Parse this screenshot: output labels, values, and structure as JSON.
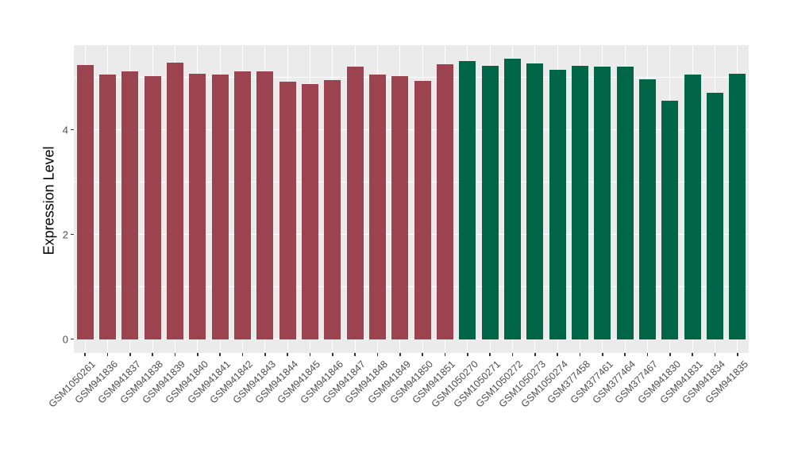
{
  "chart_data": {
    "type": "bar",
    "title": "",
    "xlabel": "",
    "ylabel": "Expression Level",
    "ylim": [
      0,
      5.61
    ],
    "yticks": [
      0,
      2,
      4
    ],
    "yticks_minor": [
      1,
      3,
      5
    ],
    "grid": true,
    "legend_position": "none",
    "categories": [
      "GSM1050261",
      "GSM941836",
      "GSM941837",
      "GSM941838",
      "GSM941839",
      "GSM941840",
      "GSM941841",
      "GSM941842",
      "GSM941843",
      "GSM941844",
      "GSM941845",
      "GSM941846",
      "GSM941847",
      "GSM941848",
      "GSM941849",
      "GSM941850",
      "GSM941851",
      "GSM1050270",
      "GSM1050271",
      "GSM1050272",
      "GSM1050273",
      "GSM1050274",
      "GSM377458",
      "GSM377461",
      "GSM377464",
      "GSM377467",
      "GSM941830",
      "GSM941831",
      "GSM941834",
      "GSM941835"
    ],
    "values": [
      5.23,
      5.06,
      5.12,
      5.02,
      5.28,
      5.07,
      5.06,
      5.12,
      5.11,
      4.92,
      4.87,
      4.94,
      5.21,
      5.06,
      5.02,
      4.93,
      5.25,
      5.31,
      5.22,
      5.36,
      5.27,
      5.14,
      5.22,
      5.2,
      5.2,
      4.96,
      4.56,
      5.06,
      4.71,
      5.07
    ],
    "groups": [
      {
        "name": "group-1",
        "color": "#9B4450",
        "count": 17
      },
      {
        "name": "group-2",
        "color": "#016647",
        "count": 13
      }
    ],
    "colors": {
      "panel_background": "#EBEBEB",
      "gridline": "#FFFFFF",
      "axis_text": "#4D4D4D",
      "axis_title": "#000000",
      "tick_mark": "#333333"
    }
  }
}
